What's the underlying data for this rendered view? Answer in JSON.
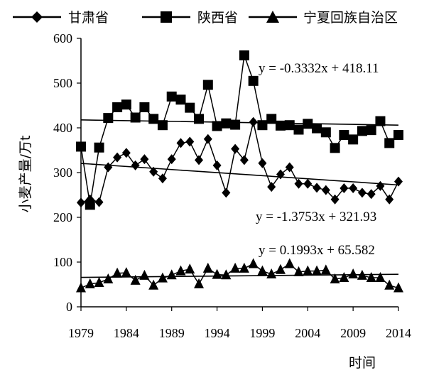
{
  "chart_data": {
    "type": "line",
    "title": "",
    "xlabel": "时间",
    "ylabel": "小麦产量/万t",
    "xlim": [
      1979,
      2014
    ],
    "ylim": [
      0,
      600
    ],
    "xticks": [
      1979,
      1984,
      1989,
      1994,
      1999,
      2004,
      2009,
      2014
    ],
    "yticks": [
      0,
      100,
      200,
      300,
      400,
      500,
      600
    ],
    "grid": false,
    "legend_position": "top",
    "x": [
      1979,
      1980,
      1981,
      1982,
      1983,
      1984,
      1985,
      1986,
      1987,
      1988,
      1989,
      1990,
      1991,
      1992,
      1993,
      1994,
      1995,
      1996,
      1997,
      1998,
      1999,
      2000,
      2001,
      2002,
      2003,
      2004,
      2005,
      2006,
      2007,
      2008,
      2009,
      2010,
      2011,
      2012,
      2013,
      2014
    ],
    "series": [
      {
        "name": "甘肃省",
        "marker": "diamond",
        "values": [
          233,
          240,
          234,
          312,
          334,
          344,
          316,
          330,
          302,
          287,
          330,
          366,
          369,
          328,
          375,
          316,
          255,
          353,
          328,
          413,
          321,
          268,
          296,
          312,
          275,
          275,
          266,
          261,
          240,
          265,
          265,
          255,
          252,
          270,
          240,
          280
        ],
        "trendline": {
          "label": "y = -1.3753x + 321.93",
          "slope": -1.3753,
          "intercept": 321.93
        }
      },
      {
        "name": "陕西省",
        "marker": "square",
        "values": [
          358,
          228,
          356,
          422,
          446,
          452,
          423,
          446,
          420,
          406,
          470,
          463,
          445,
          420,
          496,
          404,
          410,
          407,
          562,
          505,
          406,
          420,
          405,
          406,
          396,
          409,
          399,
          390,
          355,
          384,
          374,
          393,
          395,
          415,
          366,
          384
        ],
        "trendline": {
          "label": "y = -0.3332x + 418.11",
          "slope": -0.3332,
          "intercept": 418.11
        }
      },
      {
        "name": "宁夏回族自治区",
        "marker": "triangle",
        "values": [
          42,
          51,
          54,
          62,
          75,
          76,
          59,
          70,
          48,
          64,
          71,
          80,
          84,
          51,
          86,
          72,
          71,
          86,
          86,
          96,
          80,
          73,
          83,
          96,
          78,
          80,
          80,
          82,
          62,
          65,
          73,
          70,
          65,
          65,
          48,
          42
        ],
        "trendline": {
          "label": "y = 0.1993x + 65.582",
          "slope": 0.1993,
          "intercept": 65.582
        }
      }
    ]
  }
}
